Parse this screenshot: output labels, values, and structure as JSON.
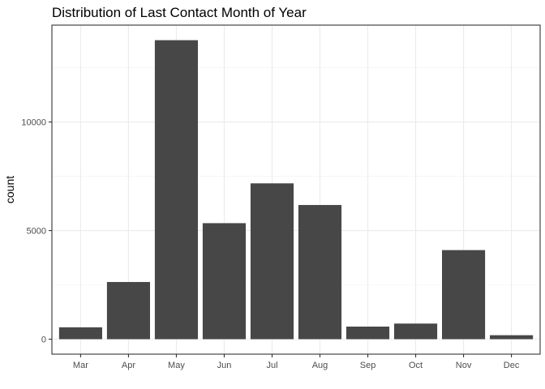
{
  "chart_data": {
    "type": "bar",
    "title": "Distribution of Last Contact Month of Year",
    "xlabel": "",
    "ylabel": "count",
    "categories": [
      "Mar",
      "Apr",
      "May",
      "Jun",
      "Jul",
      "Aug",
      "Sep",
      "Oct",
      "Nov",
      "Dec"
    ],
    "values": [
      546,
      2632,
      13766,
      5341,
      7174,
      6178,
      579,
      718,
      4101,
      182
    ],
    "y_ticks": [
      0,
      5000,
      10000
    ],
    "y_tick_labels": [
      "0",
      "5000",
      "10000"
    ],
    "ylim": [
      -690,
      14460
    ],
    "grid": true,
    "bar_color": "#474747",
    "legend": "none"
  }
}
